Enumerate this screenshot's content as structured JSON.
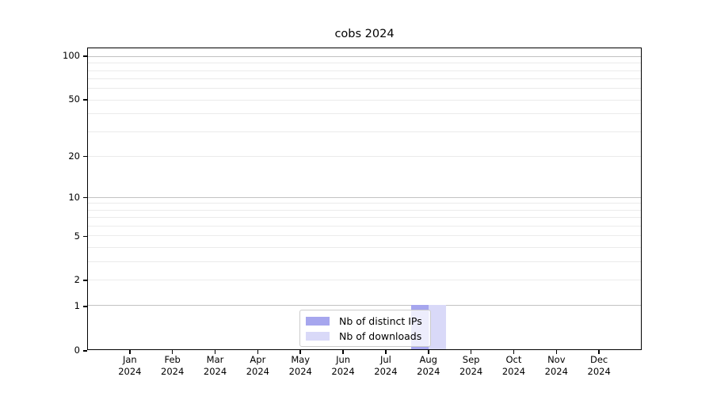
{
  "chart_data": {
    "type": "bar",
    "title": "cobs 2024",
    "categories": [
      "Jan 2024",
      "Feb 2024",
      "Mar 2024",
      "Apr 2024",
      "May 2024",
      "Jun 2024",
      "Jul 2024",
      "Aug 2024",
      "Sep 2024",
      "Oct 2024",
      "Nov 2024",
      "Dec 2024"
    ],
    "x_tick_labels": [
      [
        "Jan",
        "2024"
      ],
      [
        "Feb",
        "2024"
      ],
      [
        "Mar",
        "2024"
      ],
      [
        "Apr",
        "2024"
      ],
      [
        "May",
        "2024"
      ],
      [
        "Jun",
        "2024"
      ],
      [
        "Jul",
        "2024"
      ],
      [
        "Aug",
        "2024"
      ],
      [
        "Sep",
        "2024"
      ],
      [
        "Oct",
        "2024"
      ],
      [
        "Nov",
        "2024"
      ],
      [
        "Dec",
        "2024"
      ]
    ],
    "series": [
      {
        "name": "Nb of distinct IPs",
        "color": "#a6a6ee",
        "values": [
          0,
          0,
          0,
          0,
          0,
          0,
          0,
          1,
          0,
          0,
          0,
          0
        ]
      },
      {
        "name": "Nb of downloads",
        "color": "#d9d9f8",
        "values": [
          0,
          0,
          0,
          0,
          0,
          0,
          0,
          1,
          0,
          0,
          0,
          0
        ]
      }
    ],
    "xlabel": "",
    "ylabel": "",
    "y_axis": {
      "scale": "log10(value+1)",
      "ymin": 0,
      "ymax": 113.4,
      "ticks": [
        100,
        50,
        20,
        10,
        5,
        2,
        1,
        0
      ],
      "tick_labels": [
        "100",
        "50",
        "20",
        "10",
        "5",
        "2",
        "1",
        "0"
      ],
      "major_gridlines": [
        100,
        10,
        1
      ],
      "minor_gridlines": [
        90,
        80,
        70,
        60,
        40,
        30,
        9,
        8,
        7,
        6,
        4,
        3
      ]
    },
    "grid": true,
    "legend": {
      "position": "lower center",
      "entries": [
        {
          "label": "Nb of distinct IPs",
          "color": "#a6a6ee"
        },
        {
          "label": "Nb of downloads",
          "color": "#d9d9f8"
        }
      ]
    }
  },
  "colors": {
    "background": "#ffffff",
    "spine": "#000000",
    "grid_minor": "#ebebeb",
    "grid_major": "#c2c2c2",
    "text": "#000000"
  }
}
